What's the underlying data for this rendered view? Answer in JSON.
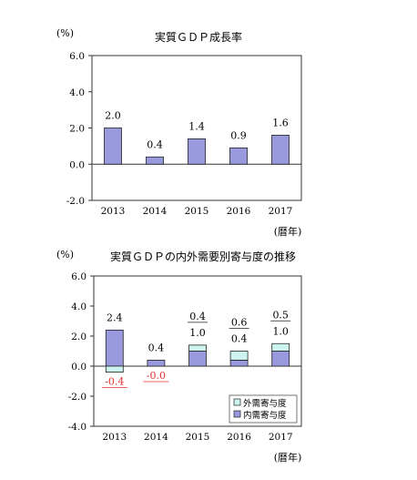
{
  "colors": {
    "domestic": "#9999dd",
    "external": "#ccf5f0",
    "bar_stroke": "#222222",
    "negative_label": "#e03030"
  },
  "chart_data": [
    {
      "type": "bar",
      "unit_label": "(%)",
      "title": "実質ＧＤＰ成長率",
      "xlabel": "(暦年)",
      "categories": [
        "2013",
        "2014",
        "2015",
        "2016",
        "2017"
      ],
      "values": [
        2.0,
        0.4,
        1.4,
        0.9,
        1.6
      ],
      "value_labels": [
        "2.0",
        "0.4",
        "1.4",
        "0.9",
        "1.6"
      ],
      "ylim": [
        -2.0,
        6.0
      ],
      "yticks": [
        -2.0,
        0.0,
        2.0,
        4.0,
        6.0
      ],
      "ytick_labels": [
        "-2.0",
        "0.0",
        "2.0",
        "4.0",
        "6.0"
      ],
      "grid": false,
      "legend": null
    },
    {
      "type": "bar",
      "stacked": true,
      "unit_label": "(%)",
      "title": "実質ＧＤＰの内外需要別寄与度の推移",
      "xlabel": "(暦年)",
      "categories": [
        "2013",
        "2014",
        "2015",
        "2016",
        "2017"
      ],
      "series": [
        {
          "name": "内需寄与度",
          "values": [
            2.4,
            0.4,
            1.0,
            0.4,
            1.0
          ],
          "value_labels": [
            "2.4",
            "0.4",
            "1.0",
            "0.4",
            "1.0"
          ]
        },
        {
          "name": "外需寄与度",
          "values": [
            -0.4,
            -0.0,
            0.4,
            0.6,
            0.5
          ],
          "value_labels": [
            "-0.4",
            "-0.0",
            "0.4",
            "0.6",
            "0.5"
          ]
        }
      ],
      "ylim": [
        -4.0,
        6.0
      ],
      "yticks": [
        -4.0,
        -2.0,
        0.0,
        2.0,
        4.0,
        6.0
      ],
      "ytick_labels": [
        "-4.0",
        "-2.0",
        "0.0",
        "2.0",
        "4.0",
        "6.0"
      ],
      "grid": false,
      "legend": "bottom-right"
    }
  ]
}
